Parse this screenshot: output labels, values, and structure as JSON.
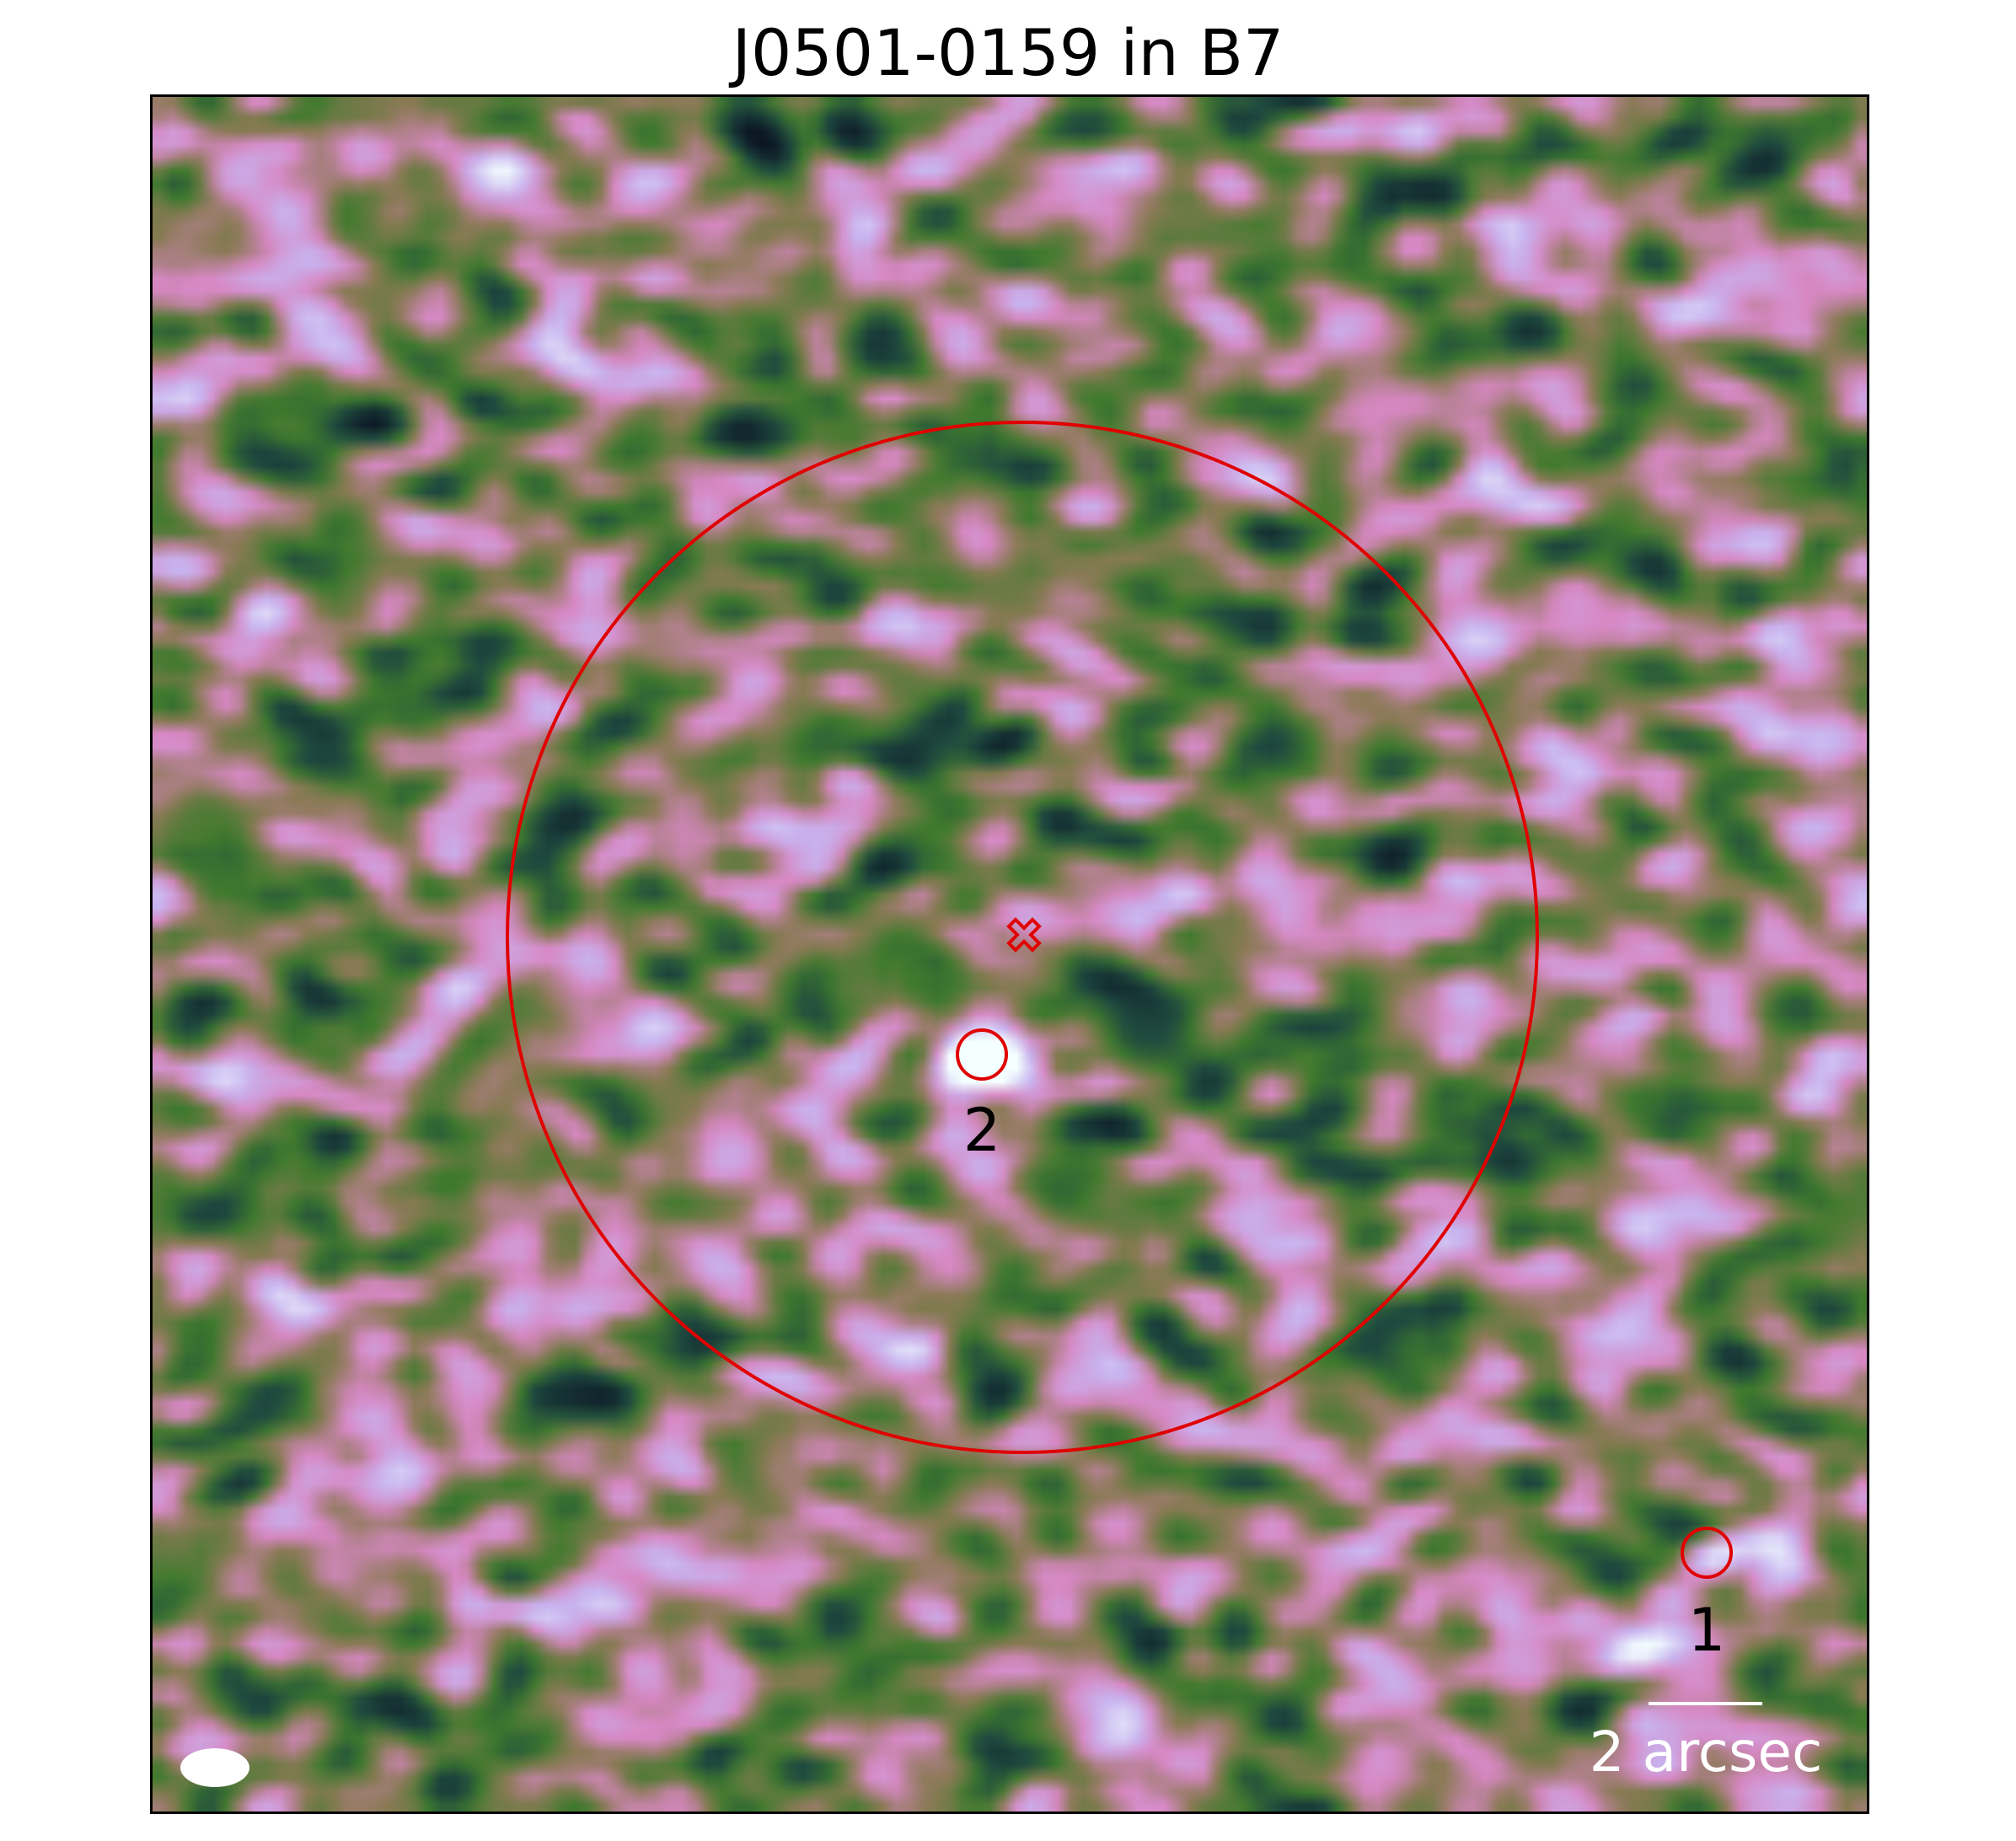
{
  "figure": {
    "title": "J0501-0159 in B7"
  },
  "map": {
    "colormap": "cubehelix",
    "colors": {
      "deep": "#0b1424",
      "green": "#3f7a2e",
      "olive": "#8a7a55",
      "pink": "#d888c4",
      "lavender": "#c8b4f0",
      "white": "#f4ffff",
      "marker": "#e00000"
    }
  },
  "sources": [
    {
      "id": "1",
      "label": "1"
    },
    {
      "id": "2",
      "label": "2"
    }
  ],
  "scale_bar": {
    "label": "2 arcsec"
  },
  "beam": {
    "shape": "ellipse"
  },
  "phase_center": {
    "marker": "x-cross-icon"
  }
}
